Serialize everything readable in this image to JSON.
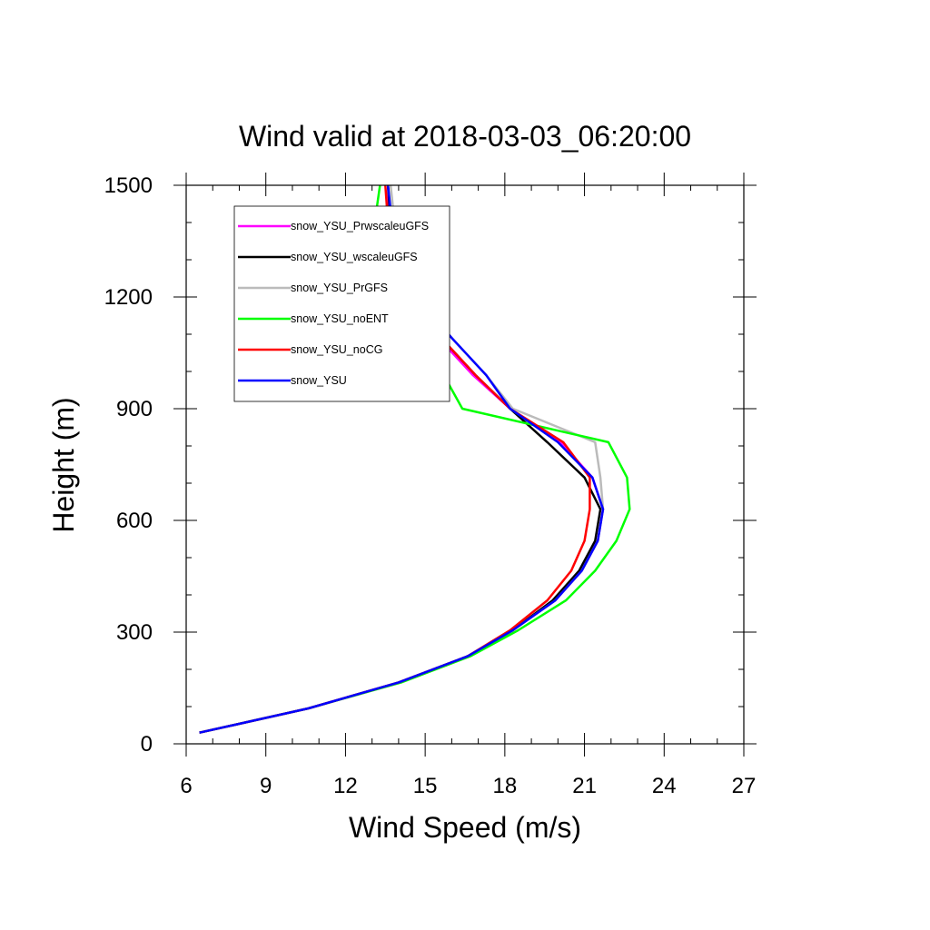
{
  "chart_data": {
    "type": "line",
    "title": "Wind valid at 2018-03-03_06:20:00",
    "xlabel": "Wind Speed (m/s)",
    "ylabel": "Height (m)",
    "xlim": [
      6,
      27
    ],
    "ylim": [
      0,
      1500
    ],
    "xticks": [
      6,
      9,
      12,
      15,
      18,
      21,
      24,
      27
    ],
    "yticks": [
      0,
      300,
      600,
      900,
      1200,
      1500
    ],
    "grid": false,
    "legend_position": "top-left",
    "heights": [
      30,
      95,
      165,
      235,
      305,
      385,
      465,
      545,
      630,
      715,
      810,
      900,
      990,
      1090,
      1195,
      1300,
      1500
    ],
    "series": [
      {
        "name": "snow_YSU_PrwscaleuGFS",
        "color": "#ff00ff",
        "values": [
          6.5,
          10.6,
          14.0,
          16.6,
          18.3,
          19.9,
          20.9,
          21.5,
          21.7,
          21.3,
          20.1,
          18.2,
          16.8,
          15.5,
          14.4,
          13.7,
          13.6
        ]
      },
      {
        "name": "snow_YSU_wscaleuGFS",
        "color": "#000000",
        "values": [
          6.5,
          10.6,
          14.0,
          16.6,
          18.3,
          19.8,
          20.8,
          21.4,
          21.6,
          21.0,
          19.6,
          18.2,
          16.9,
          15.6,
          14.5,
          13.8,
          13.6
        ]
      },
      {
        "name": "snow_YSU_PrGFS",
        "color": "#bbbbbb",
        "values": [
          6.5,
          10.6,
          14.0,
          16.6,
          18.3,
          19.9,
          20.9,
          21.5,
          21.7,
          21.6,
          21.4,
          18.3,
          17.3,
          16.0,
          14.8,
          14.0,
          13.7
        ]
      },
      {
        "name": "snow_YSU_noENT",
        "color": "#00ff00",
        "values": [
          6.5,
          10.6,
          14.1,
          16.7,
          18.5,
          20.3,
          21.4,
          22.2,
          22.7,
          22.6,
          21.9,
          16.4,
          15.7,
          14.7,
          13.4,
          12.9,
          13.3
        ]
      },
      {
        "name": "snow_YSU_noCG",
        "color": "#ff0000",
        "values": [
          6.5,
          10.6,
          14.0,
          16.6,
          18.2,
          19.6,
          20.5,
          21.0,
          21.2,
          21.2,
          20.2,
          18.2,
          16.9,
          15.6,
          14.5,
          13.7,
          13.5
        ]
      },
      {
        "name": "snow_YSU",
        "color": "#0000ff",
        "values": [
          6.5,
          10.6,
          14.0,
          16.6,
          18.3,
          19.9,
          20.9,
          21.5,
          21.7,
          21.3,
          20.0,
          18.2,
          17.3,
          16.0,
          14.7,
          13.9,
          13.6
        ]
      }
    ]
  }
}
